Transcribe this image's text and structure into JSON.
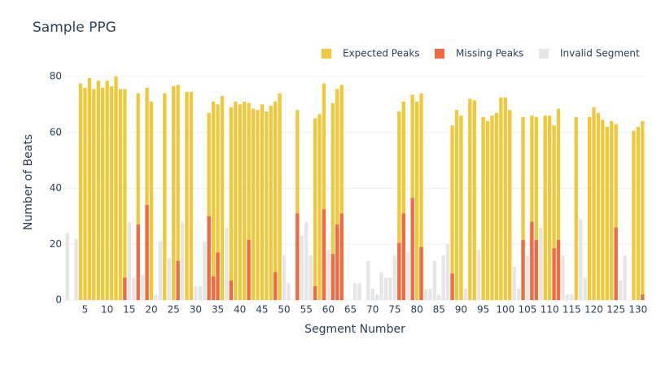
{
  "chart_data": {
    "type": "bar",
    "barmode": "overlay",
    "title": "Sample PPG",
    "x_label": "Segment Number",
    "y_label": "Number of Beats",
    "x": [
      1,
      2,
      3,
      4,
      5,
      6,
      7,
      8,
      9,
      10,
      11,
      12,
      13,
      14,
      15,
      16,
      17,
      18,
      19,
      20,
      21,
      22,
      23,
      24,
      25,
      26,
      27,
      28,
      29,
      30,
      31,
      32,
      33,
      34,
      35,
      36,
      37,
      38,
      39,
      40,
      41,
      42,
      43,
      44,
      45,
      46,
      47,
      48,
      49,
      50,
      51,
      52,
      53,
      54,
      55,
      56,
      57,
      58,
      59,
      60,
      61,
      62,
      63,
      64,
      65,
      66,
      67,
      68,
      69,
      70,
      71,
      72,
      73,
      74,
      75,
      76,
      77,
      78,
      79,
      80,
      81,
      82,
      83,
      84,
      85,
      86,
      87,
      88,
      89,
      90,
      91,
      92,
      93,
      94,
      95,
      96,
      97,
      98,
      99,
      100,
      101,
      102,
      103,
      104,
      105,
      106,
      107,
      108,
      109,
      110,
      111,
      112,
      113,
      114,
      115,
      116,
      117,
      118,
      119,
      120,
      121,
      122,
      123,
      124,
      125,
      126,
      127,
      128,
      129,
      130,
      131
    ],
    "series": [
      {
        "name": "Expected Peaks",
        "color": "#f0c83c",
        "values": [
          null,
          null,
          null,
          77.5,
          76,
          79.5,
          75.5,
          78.5,
          76,
          78.5,
          76.5,
          80,
          75.5,
          75.5,
          null,
          null,
          74,
          null,
          76,
          71,
          null,
          null,
          74,
          null,
          76.5,
          77,
          null,
          74.5,
          74.5,
          null,
          null,
          null,
          67,
          71,
          70,
          73,
          null,
          69,
          71,
          70,
          71,
          70.5,
          68.5,
          68,
          70,
          67.5,
          69.5,
          71,
          74,
          null,
          null,
          null,
          68,
          null,
          null,
          null,
          65,
          66.5,
          77.5,
          null,
          70.5,
          75.5,
          77,
          null,
          null,
          null,
          null,
          null,
          null,
          null,
          null,
          null,
          null,
          null,
          null,
          67.5,
          71,
          null,
          73.5,
          71,
          74,
          null,
          null,
          null,
          null,
          null,
          null,
          62.5,
          68,
          66,
          null,
          72,
          71.5,
          null,
          65.5,
          64,
          66,
          67,
          72.5,
          72.5,
          68,
          null,
          null,
          65.5,
          null,
          66,
          65.5,
          null,
          66,
          66,
          62.5,
          68.5,
          null,
          null,
          null,
          65.5,
          null,
          null,
          65.5,
          69,
          67,
          64.5,
          62,
          64,
          63,
          null,
          null,
          null,
          60.5,
          62,
          64
        ]
      },
      {
        "name": "Missing Peaks",
        "color": "#f26a42",
        "values": [
          null,
          null,
          null,
          null,
          null,
          null,
          null,
          null,
          null,
          null,
          null,
          null,
          null,
          8,
          null,
          null,
          27,
          null,
          34,
          null,
          null,
          null,
          null,
          null,
          null,
          14,
          null,
          null,
          null,
          null,
          null,
          null,
          30,
          8.5,
          17,
          null,
          null,
          7,
          null,
          null,
          null,
          21.5,
          null,
          null,
          null,
          null,
          null,
          10,
          null,
          null,
          null,
          null,
          31,
          null,
          null,
          null,
          5,
          null,
          32.5,
          null,
          16.5,
          27,
          31,
          null,
          null,
          null,
          null,
          null,
          null,
          null,
          null,
          null,
          null,
          null,
          null,
          20.5,
          31,
          null,
          36.5,
          null,
          19,
          null,
          null,
          null,
          null,
          null,
          null,
          9.5,
          null,
          null,
          null,
          null,
          null,
          null,
          null,
          null,
          null,
          null,
          null,
          null,
          null,
          null,
          null,
          21.5,
          null,
          28,
          21.5,
          null,
          null,
          null,
          18.5,
          21.5,
          null,
          null,
          null,
          null,
          null,
          null,
          null,
          null,
          null,
          null,
          null,
          null,
          26,
          null,
          null,
          null,
          null,
          null,
          2
        ]
      },
      {
        "name": "Invalid Segment",
        "color": "#e6e6e6",
        "values": [
          24,
          null,
          22,
          null,
          null,
          null,
          null,
          null,
          null,
          null,
          null,
          null,
          null,
          null,
          28,
          8,
          null,
          9,
          null,
          null,
          2,
          21,
          null,
          15,
          null,
          null,
          28,
          null,
          null,
          5,
          5,
          21,
          null,
          null,
          null,
          null,
          26,
          null,
          null,
          null,
          null,
          null,
          null,
          null,
          null,
          null,
          null,
          null,
          null,
          16,
          6,
          null,
          null,
          23,
          28,
          16,
          null,
          null,
          null,
          18,
          null,
          null,
          null,
          null,
          null,
          6,
          6,
          null,
          14,
          4,
          2,
          10,
          8,
          8,
          16,
          null,
          null,
          17,
          null,
          null,
          null,
          4,
          4,
          14,
          2,
          16,
          20,
          null,
          null,
          null,
          4,
          null,
          null,
          18,
          null,
          null,
          null,
          null,
          null,
          null,
          null,
          12,
          4,
          null,
          16,
          null,
          null,
          26,
          null,
          null,
          null,
          null,
          16,
          2,
          2,
          null,
          29,
          8,
          null,
          null,
          null,
          null,
          null,
          null,
          null,
          7,
          16,
          null,
          null,
          null,
          null
        ]
      }
    ],
    "xlim": [
      0.5,
      131.5
    ],
    "ylim": [
      0,
      83.5
    ],
    "xticks": [
      5,
      10,
      15,
      20,
      25,
      30,
      35,
      40,
      45,
      50,
      55,
      60,
      65,
      70,
      75,
      80,
      85,
      90,
      95,
      100,
      105,
      110,
      115,
      120,
      125,
      130
    ],
    "yticks": [
      0,
      20,
      40,
      60,
      80
    ],
    "grid": true,
    "legend": "top-right"
  }
}
